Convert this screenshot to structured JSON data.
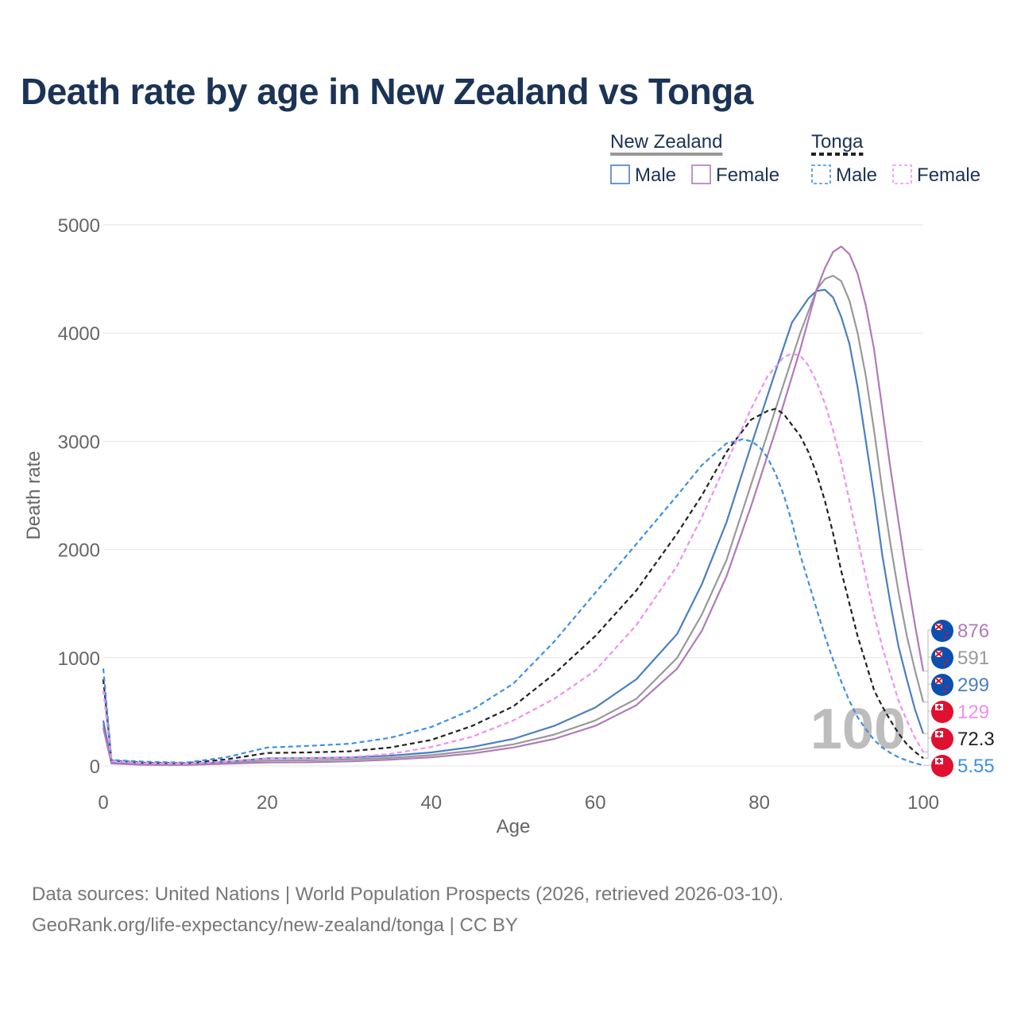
{
  "title": "Death rate by age in New Zealand vs Tonga",
  "legend": {
    "groups": [
      {
        "label": "New Zealand",
        "style": "solid",
        "color": "#999999",
        "items": [
          {
            "label": "Male",
            "color": "#4a7fc1"
          },
          {
            "label": "Female",
            "color": "#b07ab8"
          }
        ]
      },
      {
        "label": "Tonga",
        "style": "dashed",
        "color": "#222222",
        "items": [
          {
            "label": "Male",
            "color": "#3d8fe6"
          },
          {
            "label": "Female",
            "color": "#f08ff0"
          }
        ]
      }
    ]
  },
  "chart_data": {
    "type": "line",
    "title": "Death rate by age in New Zealand vs Tonga",
    "xlabel": "Age",
    "ylabel": "Death rate",
    "xlim": [
      0,
      100
    ],
    "ylim": [
      0,
      5000
    ],
    "xticks": [
      0,
      20,
      40,
      60,
      80,
      100
    ],
    "yticks": [
      0,
      1000,
      2000,
      3000,
      4000,
      5000
    ],
    "grid": true,
    "current_age_label": "100",
    "series": [
      {
        "name": "New Zealand Total",
        "country": "New Zealand",
        "color": "#999999",
        "dashed": false,
        "end_label": "591",
        "points": [
          [
            0,
            380
          ],
          [
            1,
            25
          ],
          [
            5,
            12
          ],
          [
            10,
            10
          ],
          [
            15,
            30
          ],
          [
            20,
            50
          ],
          [
            25,
            52
          ],
          [
            30,
            60
          ],
          [
            35,
            75
          ],
          [
            40,
            100
          ],
          [
            45,
            140
          ],
          [
            50,
            200
          ],
          [
            55,
            290
          ],
          [
            60,
            420
          ],
          [
            65,
            620
          ],
          [
            70,
            1000
          ],
          [
            73,
            1400
          ],
          [
            76,
            1900
          ],
          [
            79,
            2600
          ],
          [
            82,
            3300
          ],
          [
            85,
            4000
          ],
          [
            87,
            4400
          ],
          [
            88,
            4500
          ],
          [
            89,
            4530
          ],
          [
            90,
            4480
          ],
          [
            91,
            4300
          ],
          [
            92,
            4000
          ],
          [
            93,
            3600
          ],
          [
            94,
            3100
          ],
          [
            95,
            2550
          ],
          [
            96,
            2050
          ],
          [
            97,
            1600
          ],
          [
            98,
            1200
          ],
          [
            99,
            880
          ],
          [
            100,
            591
          ]
        ]
      },
      {
        "name": "New Zealand Male",
        "country": "New Zealand",
        "color": "#4a7fc1",
        "dashed": false,
        "end_label": "299",
        "points": [
          [
            0,
            420
          ],
          [
            1,
            28
          ],
          [
            5,
            14
          ],
          [
            10,
            12
          ],
          [
            15,
            40
          ],
          [
            20,
            70
          ],
          [
            25,
            72
          ],
          [
            30,
            78
          ],
          [
            35,
            95
          ],
          [
            40,
            125
          ],
          [
            45,
            175
          ],
          [
            50,
            250
          ],
          [
            55,
            370
          ],
          [
            60,
            540
          ],
          [
            65,
            800
          ],
          [
            70,
            1220
          ],
          [
            73,
            1680
          ],
          [
            76,
            2250
          ],
          [
            79,
            2960
          ],
          [
            82,
            3650
          ],
          [
            84,
            4100
          ],
          [
            86,
            4320
          ],
          [
            87,
            4390
          ],
          [
            88,
            4400
          ],
          [
            89,
            4330
          ],
          [
            90,
            4150
          ],
          [
            91,
            3900
          ],
          [
            92,
            3500
          ],
          [
            93,
            3000
          ],
          [
            94,
            2500
          ],
          [
            95,
            1950
          ],
          [
            96,
            1500
          ],
          [
            97,
            1100
          ],
          [
            98,
            800
          ],
          [
            99,
            520
          ],
          [
            100,
            299
          ]
        ]
      },
      {
        "name": "New Zealand Female",
        "country": "New Zealand",
        "color": "#b07ab8",
        "dashed": false,
        "end_label": "876",
        "points": [
          [
            0,
            350
          ],
          [
            1,
            22
          ],
          [
            5,
            10
          ],
          [
            10,
            9
          ],
          [
            15,
            20
          ],
          [
            20,
            32
          ],
          [
            25,
            34
          ],
          [
            30,
            42
          ],
          [
            35,
            58
          ],
          [
            40,
            80
          ],
          [
            45,
            115
          ],
          [
            50,
            170
          ],
          [
            55,
            250
          ],
          [
            60,
            370
          ],
          [
            65,
            560
          ],
          [
            70,
            900
          ],
          [
            73,
            1250
          ],
          [
            76,
            1750
          ],
          [
            79,
            2400
          ],
          [
            82,
            3100
          ],
          [
            85,
            3850
          ],
          [
            87,
            4400
          ],
          [
            88,
            4600
          ],
          [
            89,
            4750
          ],
          [
            90,
            4800
          ],
          [
            91,
            4730
          ],
          [
            92,
            4550
          ],
          [
            93,
            4250
          ],
          [
            94,
            3850
          ],
          [
            95,
            3300
          ],
          [
            96,
            2750
          ],
          [
            97,
            2250
          ],
          [
            98,
            1750
          ],
          [
            99,
            1300
          ],
          [
            100,
            876
          ]
        ]
      },
      {
        "name": "Tonga Total",
        "country": "Tonga",
        "color": "#222222",
        "dashed": true,
        "end_label": "72.3",
        "points": [
          [
            0,
            800
          ],
          [
            1,
            50
          ],
          [
            5,
            30
          ],
          [
            10,
            25
          ],
          [
            15,
            60
          ],
          [
            20,
            120
          ],
          [
            25,
            125
          ],
          [
            30,
            135
          ],
          [
            35,
            170
          ],
          [
            40,
            240
          ],
          [
            45,
            370
          ],
          [
            50,
            550
          ],
          [
            55,
            850
          ],
          [
            60,
            1200
          ],
          [
            65,
            1620
          ],
          [
            70,
            2150
          ],
          [
            73,
            2500
          ],
          [
            76,
            2900
          ],
          [
            79,
            3200
          ],
          [
            81,
            3280
          ],
          [
            82,
            3300
          ],
          [
            83,
            3250
          ],
          [
            84,
            3150
          ],
          [
            85,
            3050
          ],
          [
            86,
            2900
          ],
          [
            87,
            2700
          ],
          [
            88,
            2450
          ],
          [
            89,
            2150
          ],
          [
            90,
            1800
          ],
          [
            91,
            1500
          ],
          [
            92,
            1200
          ],
          [
            93,
            950
          ],
          [
            94,
            700
          ],
          [
            95,
            550
          ],
          [
            96,
            420
          ],
          [
            97,
            300
          ],
          [
            98,
            200
          ],
          [
            99,
            130
          ],
          [
            100,
            72.3
          ]
        ]
      },
      {
        "name": "Tonga Male",
        "country": "Tonga",
        "color": "#3d8fe6",
        "dashed": true,
        "end_label": "5.55",
        "points": [
          [
            0,
            900
          ],
          [
            1,
            55
          ],
          [
            5,
            40
          ],
          [
            10,
            30
          ],
          [
            15,
            80
          ],
          [
            20,
            170
          ],
          [
            25,
            185
          ],
          [
            30,
            205
          ],
          [
            35,
            260
          ],
          [
            40,
            360
          ],
          [
            45,
            520
          ],
          [
            50,
            760
          ],
          [
            55,
            1150
          ],
          [
            60,
            1600
          ],
          [
            65,
            2050
          ],
          [
            70,
            2500
          ],
          [
            73,
            2780
          ],
          [
            76,
            2980
          ],
          [
            78,
            3020
          ],
          [
            79,
            3000
          ],
          [
            80,
            2950
          ],
          [
            81,
            2850
          ],
          [
            82,
            2700
          ],
          [
            83,
            2500
          ],
          [
            84,
            2250
          ],
          [
            85,
            1950
          ],
          [
            86,
            1700
          ],
          [
            87,
            1450
          ],
          [
            88,
            1200
          ],
          [
            89,
            980
          ],
          [
            90,
            780
          ],
          [
            91,
            600
          ],
          [
            92,
            450
          ],
          [
            93,
            340
          ],
          [
            94,
            240
          ],
          [
            95,
            170
          ],
          [
            96,
            120
          ],
          [
            97,
            80
          ],
          [
            98,
            50
          ],
          [
            99,
            25
          ],
          [
            100,
            5.55
          ]
        ]
      },
      {
        "name": "Tonga Female",
        "country": "Tonga",
        "color": "#f08ff0",
        "dashed": true,
        "end_label": "129",
        "points": [
          [
            0,
            700
          ],
          [
            1,
            45
          ],
          [
            5,
            25
          ],
          [
            10,
            20
          ],
          [
            15,
            40
          ],
          [
            20,
            70
          ],
          [
            25,
            75
          ],
          [
            30,
            80
          ],
          [
            35,
            110
          ],
          [
            40,
            175
          ],
          [
            45,
            270
          ],
          [
            50,
            420
          ],
          [
            55,
            620
          ],
          [
            60,
            880
          ],
          [
            65,
            1300
          ],
          [
            70,
            1850
          ],
          [
            73,
            2300
          ],
          [
            76,
            2800
          ],
          [
            79,
            3300
          ],
          [
            81,
            3600
          ],
          [
            83,
            3780
          ],
          [
            84,
            3810
          ],
          [
            85,
            3790
          ],
          [
            86,
            3700
          ],
          [
            87,
            3550
          ],
          [
            88,
            3350
          ],
          [
            89,
            3100
          ],
          [
            90,
            2800
          ],
          [
            91,
            2450
          ],
          [
            92,
            2100
          ],
          [
            93,
            1750
          ],
          [
            94,
            1400
          ],
          [
            95,
            1100
          ],
          [
            96,
            850
          ],
          [
            97,
            600
          ],
          [
            98,
            420
          ],
          [
            99,
            260
          ],
          [
            100,
            129
          ]
        ]
      }
    ]
  },
  "footer": {
    "line1": "Data sources: United Nations | World Population Prospects (2026, retrieved 2026-03-10).",
    "line2": "GeoRank.org/life-expectancy/new-zealand/tonga | CC BY"
  }
}
